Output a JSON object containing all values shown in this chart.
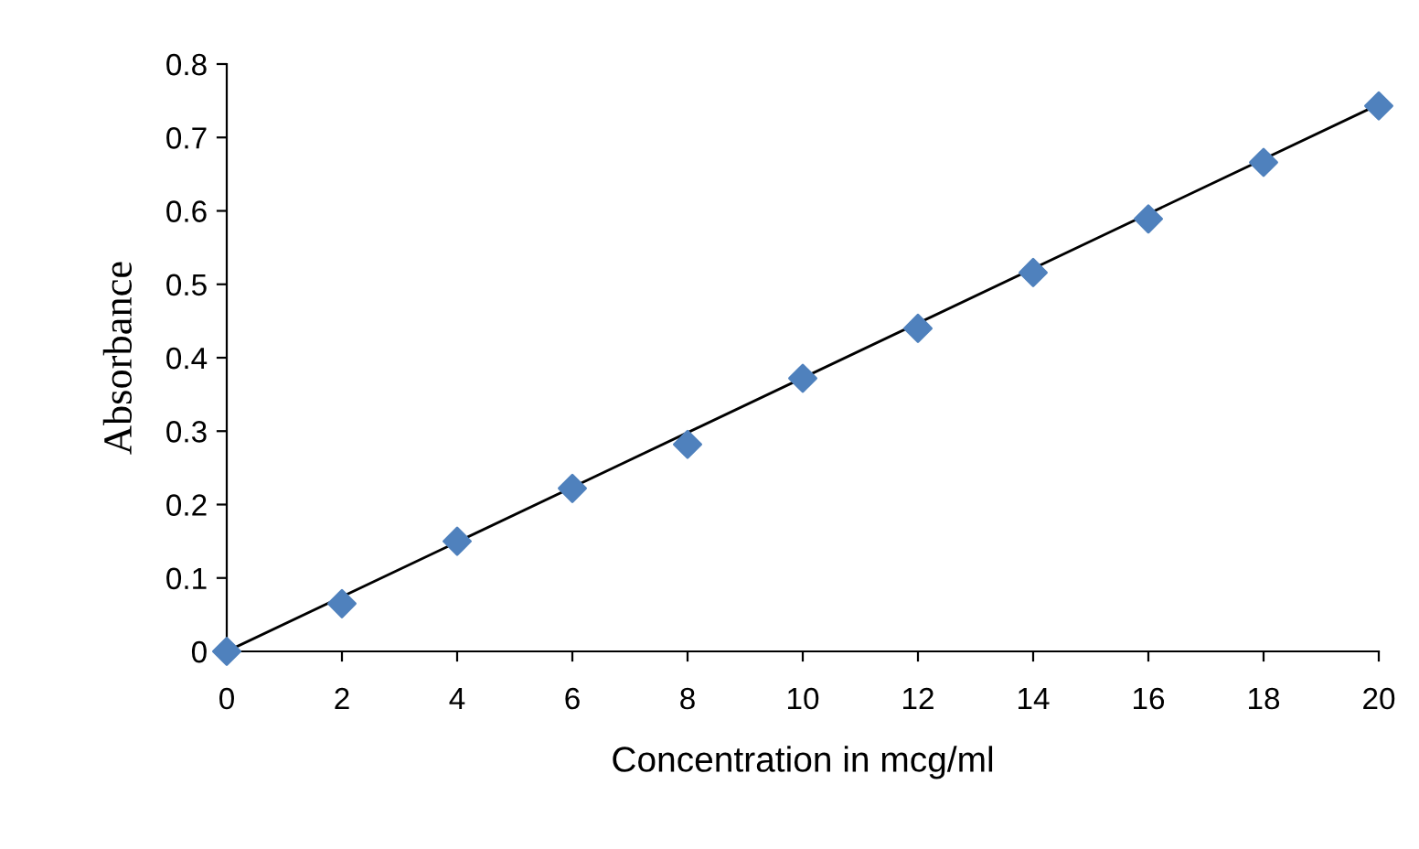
{
  "chart_data": {
    "type": "scatter",
    "xlabel": "Concentration in mcg/ml",
    "ylabel": "Absorbance",
    "x": [
      0,
      2,
      4,
      6,
      8,
      10,
      12,
      14,
      16,
      18,
      20
    ],
    "series": [
      {
        "color": "#4f81bd",
        "marker": "diamond",
        "values": [
          0,
          0.065,
          0.15,
          0.222,
          0.282,
          0.372,
          0.44,
          0.516,
          0.589,
          0.666,
          0.743
        ]
      },
      {
        "type": "line",
        "color": "#000000",
        "marker": "none",
        "x": [
          0,
          20
        ],
        "values": [
          0,
          0.745
        ]
      }
    ],
    "xlim": [
      0,
      20
    ],
    "xticks": [
      0,
      2,
      4,
      6,
      8,
      10,
      12,
      14,
      16,
      18,
      20
    ],
    "ylim": [
      0,
      0.8
    ],
    "yticks": [
      0,
      0.1,
      0.2,
      0.3,
      0.4,
      0.5,
      0.6,
      0.7,
      0.8
    ],
    "grid": false,
    "legend": false
  }
}
